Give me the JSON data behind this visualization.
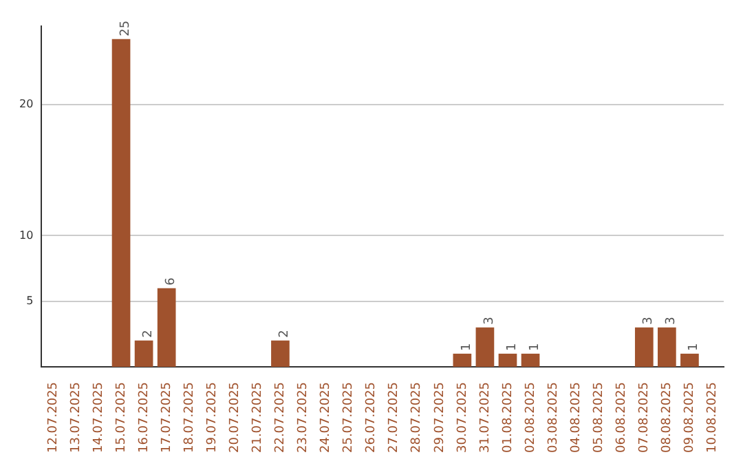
{
  "chart_data": {
    "type": "bar",
    "categories": [
      "12.07.2025",
      "13.07.2025",
      "14.07.2025",
      "15.07.2025",
      "16.07.2025",
      "17.07.2025",
      "18.07.2025",
      "19.07.2025",
      "20.07.2025",
      "21.07.2025",
      "22.07.2025",
      "23.07.2025",
      "24.07.2025",
      "25.07.2025",
      "26.07.2025",
      "27.07.2025",
      "28.07.2025",
      "29.07.2025",
      "30.07.2025",
      "31.07.2025",
      "01.08.2025",
      "02.08.2025",
      "03.08.2025",
      "04.08.2025",
      "05.08.2025",
      "06.08.2025",
      "07.08.2025",
      "08.08.2025",
      "09.08.2025",
      "10.08.2025"
    ],
    "values": [
      0,
      0,
      0,
      25,
      2,
      6,
      0,
      0,
      0,
      0,
      2,
      0,
      0,
      0,
      0,
      0,
      0,
      0,
      1,
      3,
      1,
      1,
      0,
      0,
      0,
      0,
      3,
      3,
      1,
      0
    ],
    "value_labels": [
      null,
      null,
      null,
      "25",
      "2",
      "6",
      null,
      null,
      null,
      null,
      "2",
      null,
      null,
      null,
      null,
      null,
      null,
      null,
      "1",
      "3",
      "1",
      "1",
      null,
      null,
      null,
      null,
      "3",
      "3",
      "1",
      null
    ],
    "color": "#a0522d",
    "ylim": [
      0,
      26
    ],
    "yticks": [
      5,
      10,
      20
    ],
    "grid": "y",
    "legend": false
  }
}
